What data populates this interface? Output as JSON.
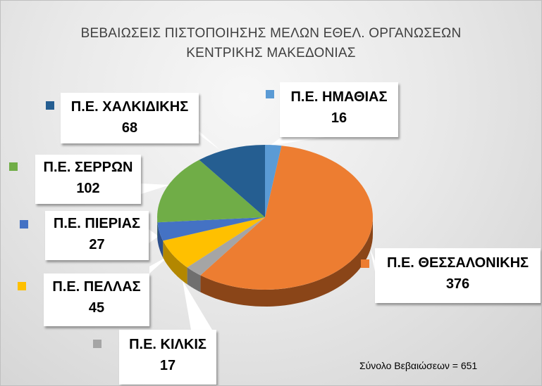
{
  "chart_data": {
    "type": "pie",
    "variant": "3d-pie",
    "title": "ΒΕΒΑΙΩΣΕΙΣ ΠΙΣΤΟΠΟΙΗΣΗΣ ΜΕΛΩΝ ΕΘΕΛ. ΟΡΓΑΝΩΣΕΩΝ ΚΕΝΤΡΙΚΗΣ ΜΑΚΕΔΟΝΙΑΣ",
    "title_lines": [
      "ΒΕΒΑΙΩΣΕΙΣ ΠΙΣΤΟΠΟΙΗΣΗΣ ΜΕΛΩΝ ΕΘΕΛ. ΟΡΓΑΝΩΣΕΩΝ",
      "ΚΕΝΤΡΙΚΗΣ ΜΑΚΕΔΟΝΙΑΣ"
    ],
    "categories": [
      "Π.Ε. ΗΜΑΘΙΑΣ",
      "Π.Ε. ΘΕΣΣΑΛΟΝΙΚΗΣ",
      "Π.Ε. ΚΙΛΚΙΣ",
      "Π.Ε. ΠΕΛΛΑΣ",
      "Π.Ε. ΠΙΕΡΙΑΣ",
      "Π.Ε. ΣΕΡΡΩΝ",
      "Π.Ε. ΧΑΛΚΙΔΙΚΗΣ"
    ],
    "values": [
      16,
      376,
      17,
      45,
      27,
      102,
      68
    ],
    "colors": [
      "#5b9bd5",
      "#ed7d31",
      "#a5a5a5",
      "#ffc000",
      "#4472c4",
      "#70ad47",
      "#255e91"
    ],
    "side_colors": [
      "#3a6f9f",
      "#8a4518",
      "#6f6f6f",
      "#b38700",
      "#2d4f8c",
      "#4c7a2f",
      "#173e61"
    ],
    "data_labels": "category name and value in callouts",
    "legend": "none (colored keys beside callouts)",
    "annotation": "Σύνολο Βεβαιώσεων = 651",
    "total": 651
  },
  "callouts": [
    {
      "name": "Π.Ε. ΗΜΑΘΙΑΣ",
      "value": "16"
    },
    {
      "name": "Π.Ε. ΘΕΣΣΑΛΟΝΙΚΗΣ",
      "value": "376"
    },
    {
      "name": "Π.Ε. ΚΙΛΚΙΣ",
      "value": "17"
    },
    {
      "name": "Π.Ε. ΠΕΛΛΑΣ",
      "value": "45"
    },
    {
      "name": "Π.Ε. ΠΙΕΡΙΑΣ",
      "value": "27"
    },
    {
      "name": "Π.Ε. ΣΕΡΡΩΝ",
      "value": "102"
    },
    {
      "name": "Π.Ε. ΧΑΛΚΙΔΙΚΗΣ",
      "value": "68"
    }
  ],
  "footer": {
    "total_text": "Σύνολο Βεβαιώσεων = 651"
  }
}
